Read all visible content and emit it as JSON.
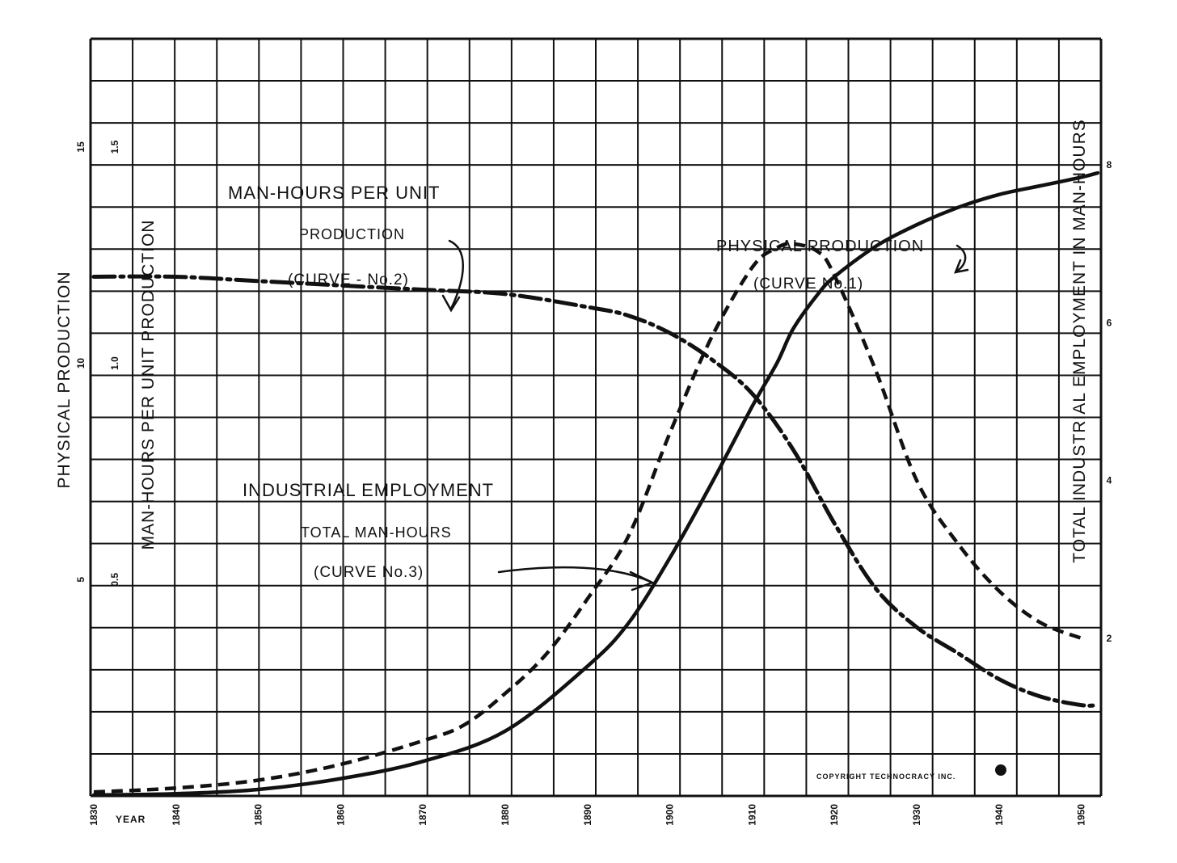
{
  "chart_data": {
    "type": "line",
    "x": [
      1830,
      1840,
      1850,
      1860,
      1870,
      1880,
      1890,
      1900,
      1910,
      1920,
      1930,
      1940,
      1950
    ],
    "xlabel": "YEAR",
    "xlim": [
      1830,
      1952
    ],
    "x_ticks": [
      "1830",
      "1840",
      "1850",
      "1860",
      "1870",
      "1880",
      "1890",
      "1900",
      "1910",
      "1920",
      "1930",
      "1940",
      "1950"
    ],
    "left_axis_outer": {
      "label": "PHYSICAL PRODUCTION",
      "ticks": [
        "5",
        "10",
        "15"
      ],
      "ylim": [
        0,
        17.5
      ]
    },
    "left_axis_inner": {
      "label": "MAN-HOURS PER UNIT PRODUCTION",
      "ticks": [
        "0.5",
        "1.0",
        "1.5"
      ],
      "ylim": [
        0,
        1.75
      ]
    },
    "right_axis": {
      "label": "TOTAL INDUSTRIAL EMPLOYMENT IN MAN-HOURS",
      "ticks": [
        "2",
        "4",
        "6",
        "8"
      ],
      "ylim": [
        0,
        9.6
      ]
    },
    "series": [
      {
        "name": "PHYSICAL PRODUCTION (CURVE No.1)",
        "axis": "left_axis_outer",
        "style": "solid",
        "x": [
          1830,
          1840,
          1850,
          1860,
          1870,
          1880,
          1890,
          1895,
          1900,
          1905,
          1910,
          1913,
          1915,
          1918,
          1920,
          1925,
          1930,
          1935,
          1940,
          1945,
          1950,
          1952
        ],
        "values": [
          0.02,
          0.05,
          0.15,
          0.4,
          0.8,
          1.5,
          3.0,
          4.0,
          5.5,
          7.2,
          9.0,
          10.0,
          10.8,
          11.6,
          12.0,
          12.7,
          13.2,
          13.6,
          13.9,
          14.1,
          14.3,
          14.4
        ]
      },
      {
        "name": "MAN-HOURS PER UNIT PRODUCTION (CURVE - No.2)",
        "axis": "left_axis_inner",
        "style": "dash-dot",
        "x": [
          1830,
          1840,
          1850,
          1860,
          1870,
          1880,
          1890,
          1895,
          1900,
          1905,
          1910,
          1915,
          1920,
          1925,
          1930,
          1935,
          1940,
          1945,
          1950,
          1952
        ],
        "values": [
          1.2,
          1.2,
          1.19,
          1.18,
          1.17,
          1.16,
          1.13,
          1.11,
          1.07,
          1.01,
          0.93,
          0.8,
          0.63,
          0.48,
          0.39,
          0.33,
          0.27,
          0.23,
          0.21,
          0.21
        ]
      },
      {
        "name": "INDUSTRIAL EMPLOYMENT TOTAL MAN-HOURS (CURVE No.3)",
        "axis": "right_axis",
        "style": "dashed",
        "x": [
          1830,
          1840,
          1850,
          1860,
          1870,
          1875,
          1880,
          1885,
          1890,
          1895,
          1900,
          1905,
          1910,
          1913,
          1915,
          1918,
          1920,
          1925,
          1930,
          1935,
          1940,
          1945,
          1950
        ],
        "values": [
          0.05,
          0.1,
          0.2,
          0.4,
          0.7,
          0.9,
          1.3,
          1.8,
          2.5,
          3.3,
          4.6,
          5.8,
          6.7,
          6.95,
          7.0,
          6.9,
          6.6,
          5.4,
          4.0,
          3.2,
          2.6,
          2.2,
          2.0
        ]
      }
    ],
    "annotations": [
      {
        "text": "MAN-HOURS PER UNIT",
        "series": 1
      },
      {
        "text": "PRODUCTION",
        "series": 1
      },
      {
        "text": "(CURVE - No.2)",
        "series": 1
      },
      {
        "text": "PHYSICAL PRODUCTION",
        "series": 0
      },
      {
        "text": "(CURVE No.1)",
        "series": 0
      },
      {
        "text": "INDUSTRIAL EMPLOYMENT",
        "series": 2
      },
      {
        "text": "TOTAL MAN-HOURS",
        "series": 2
      },
      {
        "text": "(CURVE No.3)",
        "series": 2
      }
    ],
    "copyright": "COPYRIGHT TECHNOCRACY INC.",
    "grid": true,
    "colors": {
      "ink": "#111111",
      "paper": "#ffffff"
    }
  }
}
